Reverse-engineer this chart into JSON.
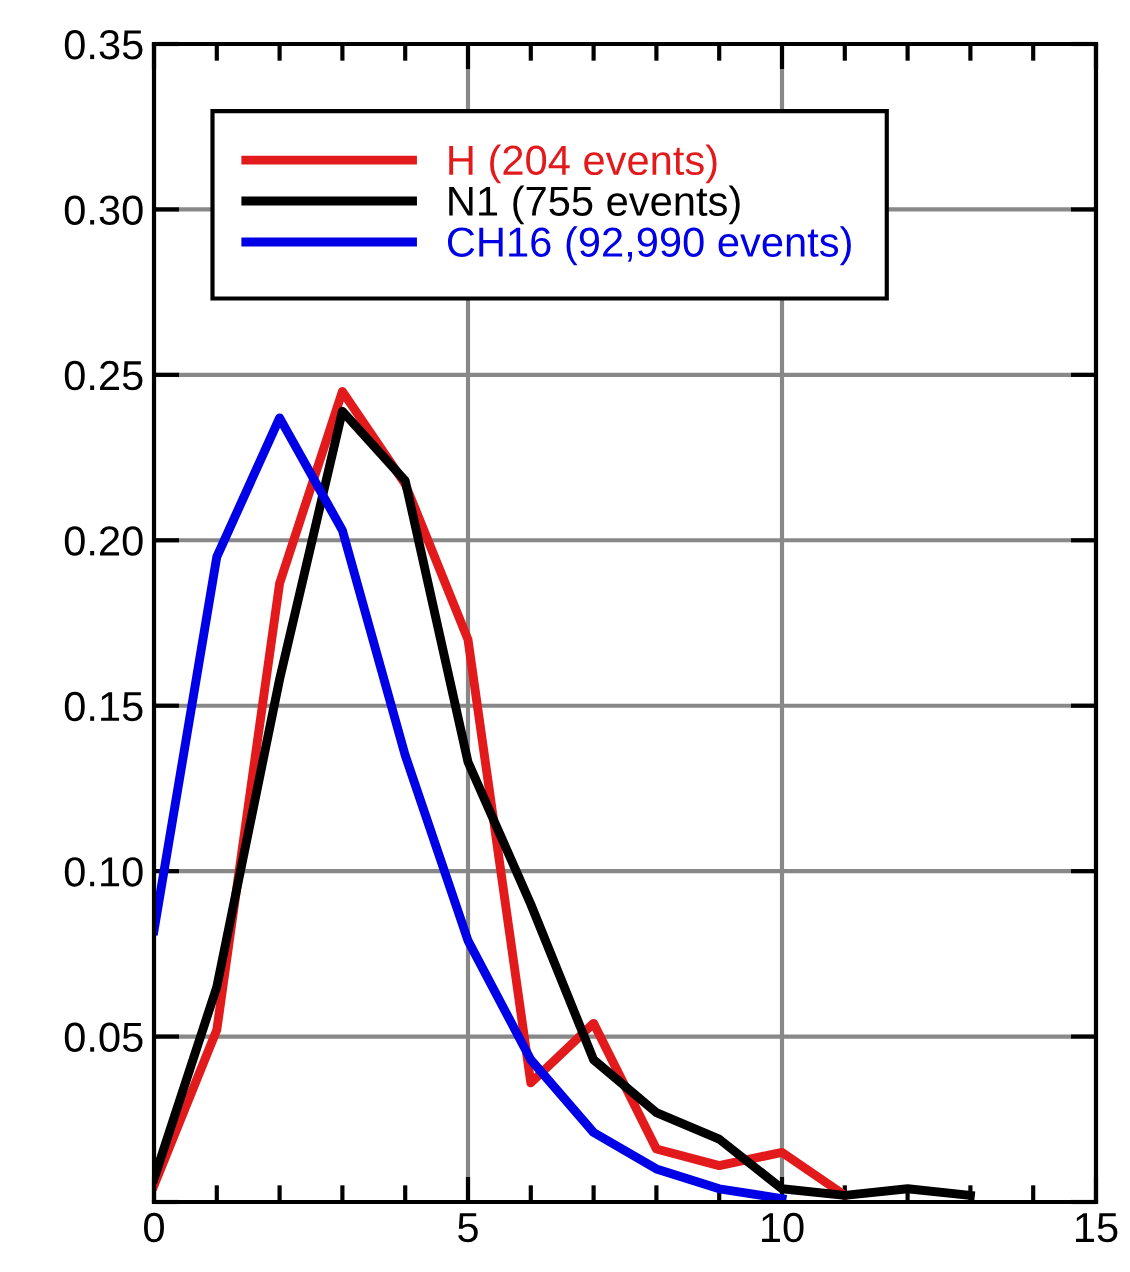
{
  "chart_data": {
    "type": "line",
    "x": [
      0,
      1,
      2,
      3,
      4,
      5,
      6,
      7,
      8,
      9,
      10,
      11,
      12,
      13
    ],
    "series": [
      {
        "name": "H (204 events)",
        "color": "#e31a1c",
        "values": [
          0.005,
          0.052,
          0.187,
          0.245,
          0.217,
          0.17,
          0.036,
          0.054,
          0.016,
          0.011,
          0.015,
          0.002,
          null,
          null
        ]
      },
      {
        "name": "N1 (755 events)",
        "color": "#000000",
        "values": [
          0.007,
          0.065,
          0.158,
          0.239,
          0.218,
          0.133,
          0.09,
          0.043,
          0.027,
          0.019,
          0.004,
          0.002,
          0.004,
          0.002
        ]
      },
      {
        "name": "CH16 (92,990 events)",
        "color": "#0000e6",
        "values": [
          0.082,
          0.195,
          0.237,
          0.203,
          0.135,
          0.079,
          0.043,
          0.021,
          0.01,
          0.004,
          0.001,
          null,
          null,
          null
        ]
      }
    ],
    "xlim": [
      0,
      15
    ],
    "xticks": [
      0,
      5,
      10,
      15
    ],
    "ylim": [
      0,
      0.35
    ],
    "yticks": [
      {
        "value": 0,
        "label": null
      },
      0.05,
      {
        "value": 0.1,
        "label": "0.10"
      },
      0.15,
      {
        "value": 0.2,
        "label": "0.20"
      },
      0.25,
      {
        "value": 0.3,
        "label": "0.30"
      },
      0.35
    ],
    "grid": true,
    "legend": "top",
    "marker": "none",
    "line_style": "solid"
  }
}
